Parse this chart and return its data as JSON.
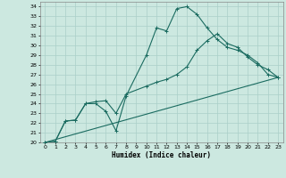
{
  "xlabel": "Humidex (Indice chaleur)",
  "background_color": "#cce8e0",
  "grid_color": "#aacfc8",
  "line_color": "#1a6b60",
  "xlim": [
    -0.5,
    23.5
  ],
  "ylim": [
    20,
    34.5
  ],
  "xticks": [
    0,
    1,
    2,
    3,
    4,
    5,
    6,
    7,
    8,
    9,
    10,
    11,
    12,
    13,
    14,
    15,
    16,
    17,
    18,
    19,
    20,
    21,
    22,
    23
  ],
  "yticks": [
    20,
    21,
    22,
    23,
    24,
    25,
    26,
    27,
    28,
    29,
    30,
    31,
    32,
    33,
    34
  ],
  "series1_x": [
    0,
    1,
    2,
    3,
    4,
    5,
    6,
    7,
    8,
    10,
    11,
    12,
    13,
    14,
    15,
    16,
    17,
    18,
    19,
    20,
    21,
    22,
    23
  ],
  "series1_y": [
    20.0,
    20.1,
    22.2,
    22.3,
    24.0,
    24.0,
    23.2,
    21.2,
    24.8,
    29.0,
    31.8,
    31.5,
    33.8,
    34.0,
    33.2,
    31.8,
    30.6,
    29.8,
    29.5,
    29.0,
    28.2,
    27.0,
    26.7
  ],
  "series2_x": [
    0,
    1,
    2,
    3,
    4,
    5,
    6,
    7,
    8,
    10,
    11,
    12,
    13,
    14,
    15,
    16,
    17,
    18,
    19,
    20,
    21,
    22,
    23
  ],
  "series2_y": [
    20.0,
    20.1,
    22.2,
    22.3,
    24.0,
    24.2,
    24.3,
    23.0,
    25.0,
    25.8,
    26.2,
    26.5,
    27.0,
    27.8,
    29.5,
    30.5,
    31.2,
    30.2,
    29.8,
    28.8,
    28.0,
    27.5,
    26.7
  ],
  "series3_x": [
    0,
    23
  ],
  "series3_y": [
    20.0,
    26.7
  ],
  "marker_size": 2.5,
  "line_width": 0.8
}
